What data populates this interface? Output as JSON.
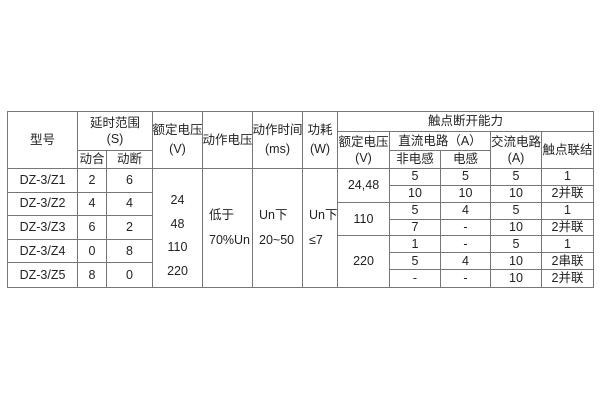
{
  "header": {
    "model": "型号",
    "delay_range": "延时范围",
    "delay_unit": "(S)",
    "normally_open": "动合",
    "normally_closed": "动断",
    "rated_voltage": "额定电压",
    "rated_voltage_unit": "(V)",
    "operate_voltage": "动作电压",
    "operate_time": "动作时间",
    "operate_time_unit": "(ms)",
    "power": "功耗",
    "power_unit": "(W)",
    "contact_breaking": "触点断开能力",
    "breaking_rated_voltage": "额定电压",
    "breaking_rated_voltage_unit": "(V)",
    "dc_circuit": "直流电路（A）",
    "non_inductive": "非电感",
    "inductive": "电感",
    "ac_circuit": "交流电路",
    "ac_circuit_unit": "(A)",
    "contact_connection": "触点联结"
  },
  "models": [
    {
      "name": "DZ-3/Z1",
      "no": "2",
      "nc": "6"
    },
    {
      "name": "DZ-3/Z2",
      "no": "4",
      "nc": "4"
    },
    {
      "name": "DZ-3/Z3",
      "no": "6",
      "nc": "2"
    },
    {
      "name": "DZ-3/Z4",
      "no": "0",
      "nc": "8"
    },
    {
      "name": "DZ-3/Z5",
      "no": "8",
      "nc": "0"
    }
  ],
  "rated_voltages": [
    "24",
    "48",
    "110",
    "220"
  ],
  "operate_voltage_lines": [
    "低于",
    "70%Un"
  ],
  "operate_time_lines": [
    "Un下",
    "20~50"
  ],
  "power_lines": [
    "Un下",
    "≤7"
  ],
  "breaking_groups": [
    {
      "voltage": "24,48",
      "rows": [
        [
          "5",
          "5",
          "5",
          "1"
        ],
        [
          "10",
          "10",
          "10",
          "2并联"
        ]
      ]
    },
    {
      "voltage": "110",
      "rows": [
        [
          "5",
          "4",
          "5",
          "1"
        ],
        [
          "7",
          "-",
          "10",
          "2并联"
        ]
      ]
    },
    {
      "voltage": "220",
      "rows": [
        [
          "1",
          "-",
          "5",
          "1"
        ],
        [
          "5",
          "4",
          "10",
          "2串联"
        ],
        [
          "-",
          "-",
          "10",
          "2并联"
        ]
      ]
    }
  ],
  "colors": {
    "grid_line": "#777777",
    "text": "#222222",
    "background": "#ffffff"
  }
}
